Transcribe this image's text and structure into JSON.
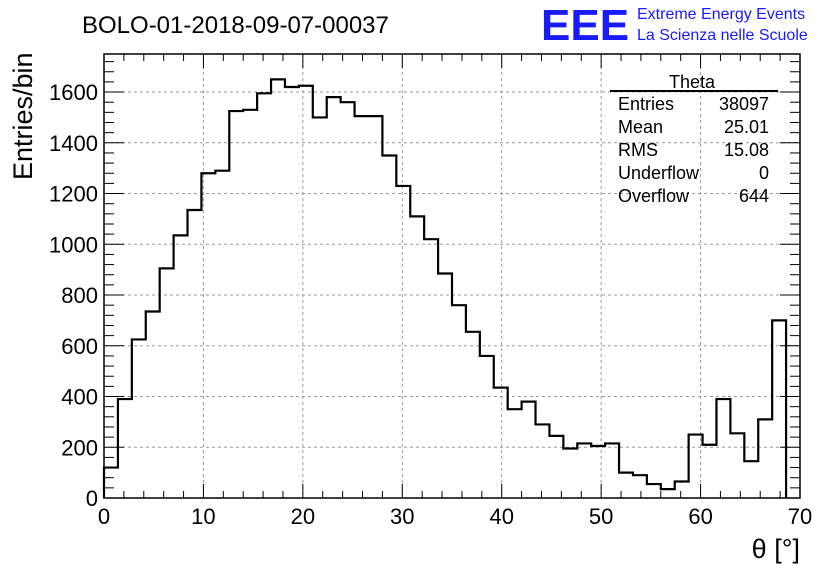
{
  "header": {
    "title": "BOLO-01-2018-09-07-00037",
    "logo_mark": "EEE",
    "logo_line1": "Extreme Energy Events",
    "logo_line2": "La Scienza nelle Scuole",
    "logo_color": "#1a1aff"
  },
  "stats": {
    "name": "Theta",
    "rows": [
      {
        "label": "Entries",
        "value": "38097"
      },
      {
        "label": "Mean",
        "value": "25.01"
      },
      {
        "label": "RMS",
        "value": "15.08"
      },
      {
        "label": "Underflow",
        "value": "0"
      },
      {
        "label": "Overflow",
        "value": "644"
      }
    ]
  },
  "chart_data": {
    "type": "bar",
    "histogram": true,
    "title": "BOLO-01-2018-09-07-00037",
    "xlabel": "θ [°]",
    "ylabel": "Entries/bin",
    "xlim": [
      0,
      70
    ],
    "ylim": [
      0,
      1750
    ],
    "xticks": [
      0,
      10,
      20,
      30,
      40,
      50,
      60,
      70
    ],
    "yticks": [
      0,
      200,
      400,
      600,
      800,
      1000,
      1200,
      1400,
      1600
    ],
    "grid": true,
    "bin_width": 1.4,
    "bin_start": 0,
    "values": [
      120,
      390,
      625,
      735,
      905,
      1035,
      1135,
      1280,
      1290,
      1525,
      1530,
      1595,
      1650,
      1620,
      1625,
      1500,
      1580,
      1560,
      1505,
      1505,
      1350,
      1230,
      1110,
      1020,
      885,
      760,
      655,
      560,
      435,
      350,
      380,
      290,
      245,
      195,
      215,
      205,
      215,
      100,
      90,
      55,
      35,
      65,
      250,
      210,
      390,
      255,
      145,
      310,
      700
    ]
  }
}
